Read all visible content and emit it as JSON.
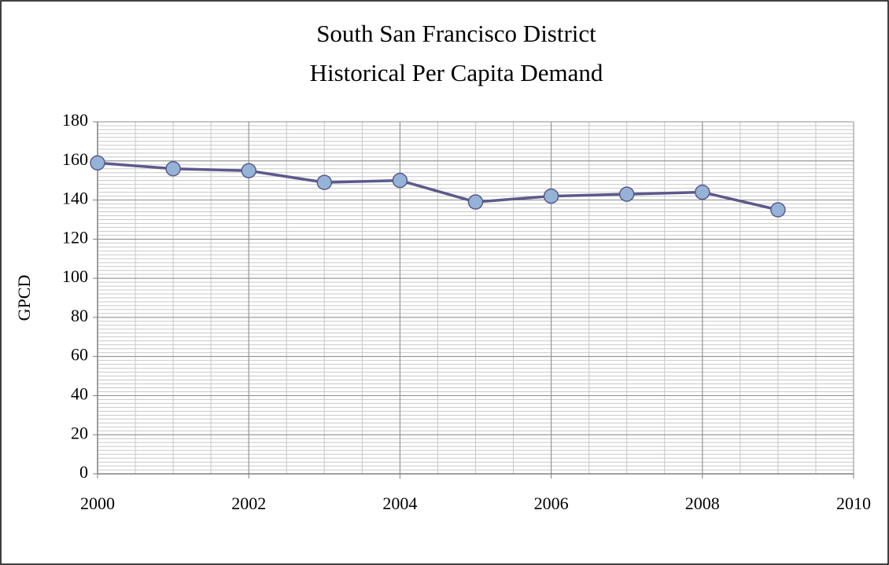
{
  "chart_data": {
    "type": "line",
    "title": "South San Francisco District",
    "subtitle": "Historical Per Capita Demand",
    "ylabel": "GPCD",
    "x": [
      2000,
      2001,
      2002,
      2003,
      2004,
      2005,
      2006,
      2007,
      2008,
      2009
    ],
    "series": [
      {
        "name": "GPCD",
        "color": "#5a5a8c",
        "marker_color": "#95b3d7",
        "values": [
          159,
          156,
          155,
          149,
          150,
          139,
          142,
          143,
          144,
          135
        ]
      }
    ],
    "xlim": [
      2000,
      2010
    ],
    "xticks": [
      2000,
      2002,
      2004,
      2006,
      2008,
      2010
    ],
    "ylim": [
      0,
      180
    ],
    "yticks": [
      0,
      20,
      40,
      60,
      80,
      100,
      120,
      140,
      160,
      180
    ],
    "grid": true,
    "minor_grid": {
      "x": 0.5,
      "y": 2
    },
    "legend": false
  }
}
